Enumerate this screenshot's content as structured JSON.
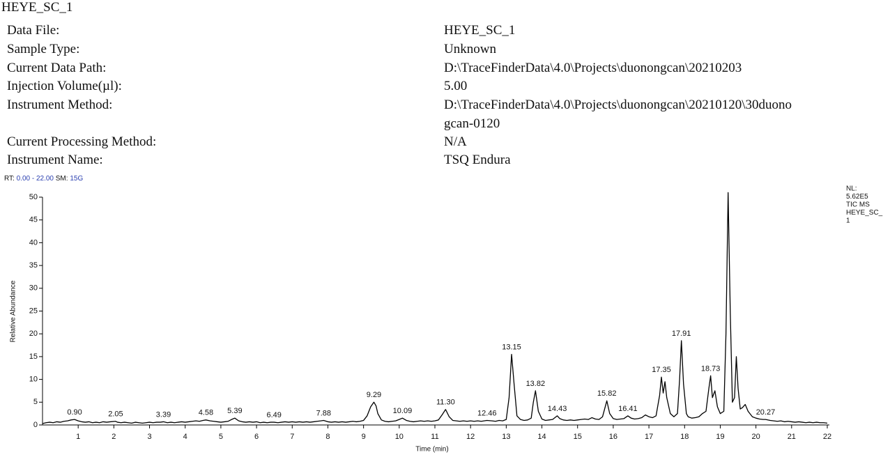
{
  "header": {
    "title": "HEYE_SC_1",
    "fields": [
      {
        "label": "Data File:",
        "value": "HEYE_SC_1"
      },
      {
        "label": "Sample Type:",
        "value": "Unknown"
      },
      {
        "label": "Current Data Path:",
        "value": "D:\\TraceFinderData\\4.0\\Projects\\duonongcan\\20210203"
      },
      {
        "label": "Injection Volume(µl):",
        "value": "5.00"
      },
      {
        "label": "Instrument Method:",
        "value": [
          "D:\\TraceFinderData\\4.0\\Projects\\duonongcan\\20210120\\30duono",
          "gcan-0120"
        ]
      },
      {
        "label": "Current Processing Method:",
        "value": "N/A"
      },
      {
        "label": "Instrument Name:",
        "value": "TSQ Endura"
      }
    ]
  },
  "chart_data": {
    "type": "line",
    "rt_label": "RT:",
    "rt_range": "0.00 - 22.00",
    "sm_label": "SM:",
    "sm_value": "15G",
    "nl_lines": [
      "NL:",
      "5.62E5",
      "TIC  MS",
      "HEYE_SC_",
      "1"
    ],
    "xlabel": "Time (min)",
    "ylabel": "Relative Abundance",
    "xlim": [
      0,
      22
    ],
    "xticks": [
      1,
      2,
      3,
      4,
      5,
      6,
      7,
      8,
      9,
      10,
      11,
      12,
      13,
      14,
      15,
      16,
      17,
      18,
      19,
      20,
      21,
      22
    ],
    "ylim": [
      0,
      50
    ],
    "yticks": [
      0,
      5,
      10,
      15,
      20,
      25,
      30,
      35,
      40,
      45,
      50
    ],
    "color": "#000000",
    "x": [
      0.0,
      0.1,
      0.2,
      0.3,
      0.4,
      0.5,
      0.6,
      0.7,
      0.8,
      0.9,
      1.0,
      1.1,
      1.2,
      1.3,
      1.4,
      1.5,
      1.6,
      1.7,
      1.8,
      1.9,
      2.05,
      2.1,
      2.2,
      2.3,
      2.4,
      2.5,
      2.6,
      2.7,
      2.8,
      2.9,
      3.0,
      3.1,
      3.2,
      3.3,
      3.39,
      3.5,
      3.6,
      3.7,
      3.8,
      3.9,
      4.0,
      4.1,
      4.2,
      4.3,
      4.4,
      4.5,
      4.58,
      4.7,
      4.8,
      4.9,
      5.0,
      5.1,
      5.2,
      5.3,
      5.39,
      5.5,
      5.6,
      5.7,
      5.8,
      5.9,
      6.0,
      6.1,
      6.2,
      6.3,
      6.4,
      6.49,
      6.6,
      6.7,
      6.8,
      6.9,
      7.0,
      7.1,
      7.2,
      7.3,
      7.4,
      7.5,
      7.6,
      7.7,
      7.8,
      7.88,
      8.0,
      8.1,
      8.2,
      8.3,
      8.4,
      8.5,
      8.6,
      8.7,
      8.8,
      8.9,
      9.0,
      9.1,
      9.2,
      9.29,
      9.35,
      9.4,
      9.5,
      9.6,
      9.7,
      9.8,
      9.9,
      10.0,
      10.09,
      10.2,
      10.3,
      10.4,
      10.5,
      10.6,
      10.7,
      10.8,
      10.9,
      11.0,
      11.1,
      11.2,
      11.3,
      11.4,
      11.5,
      11.6,
      11.7,
      11.8,
      11.9,
      12.0,
      12.1,
      12.2,
      12.3,
      12.46,
      12.6,
      12.7,
      12.8,
      12.9,
      13.0,
      13.08,
      13.15,
      13.22,
      13.3,
      13.4,
      13.5,
      13.6,
      13.7,
      13.76,
      13.82,
      13.9,
      14.0,
      14.1,
      14.2,
      14.3,
      14.43,
      14.5,
      14.6,
      14.7,
      14.8,
      14.9,
      15.0,
      15.1,
      15.2,
      15.3,
      15.4,
      15.5,
      15.6,
      15.7,
      15.82,
      15.9,
      16.0,
      16.1,
      16.2,
      16.3,
      16.41,
      16.5,
      16.6,
      16.7,
      16.8,
      16.9,
      17.0,
      17.1,
      17.2,
      17.3,
      17.35,
      17.4,
      17.45,
      17.5,
      17.6,
      17.7,
      17.8,
      17.86,
      17.91,
      17.97,
      18.05,
      18.1,
      18.2,
      18.3,
      18.4,
      18.5,
      18.6,
      18.68,
      18.73,
      18.78,
      18.85,
      18.92,
      19.0,
      19.1,
      19.16,
      19.22,
      19.28,
      19.34,
      19.4,
      19.45,
      19.5,
      19.56,
      19.62,
      19.7,
      19.78,
      19.9,
      20.0,
      20.1,
      20.2,
      20.27,
      20.4,
      20.5,
      20.6,
      20.7,
      20.8,
      20.9,
      21.0,
      21.1,
      21.2,
      21.3,
      21.4,
      21.5,
      21.6,
      21.7,
      21.8,
      21.9,
      22.0
    ],
    "values": [
      0.3,
      0.5,
      0.6,
      0.5,
      0.7,
      0.6,
      0.8,
      0.9,
      1.1,
      1.2,
      0.9,
      0.7,
      0.6,
      0.7,
      0.5,
      0.6,
      0.5,
      0.7,
      0.6,
      0.7,
      0.8,
      0.6,
      0.5,
      0.6,
      0.5,
      0.4,
      0.6,
      0.5,
      0.4,
      0.5,
      0.6,
      0.5,
      0.6,
      0.6,
      0.7,
      0.5,
      0.6,
      0.5,
      0.6,
      0.7,
      0.6,
      0.7,
      0.8,
      0.9,
      0.8,
      1.0,
      1.1,
      0.9,
      0.8,
      0.7,
      0.6,
      0.7,
      0.8,
      1.2,
      1.5,
      0.9,
      0.7,
      0.6,
      0.7,
      0.6,
      0.7,
      0.5,
      0.6,
      0.5,
      0.6,
      0.6,
      0.5,
      0.6,
      0.7,
      0.6,
      0.7,
      0.6,
      0.7,
      0.6,
      0.7,
      0.6,
      0.7,
      0.8,
      0.9,
      1.0,
      0.7,
      0.6,
      0.7,
      0.6,
      0.7,
      0.6,
      0.7,
      0.8,
      0.7,
      0.8,
      1.0,
      2.0,
      4.0,
      5.0,
      4.2,
      2.5,
      1.1,
      0.8,
      0.7,
      0.8,
      0.9,
      1.2,
      1.5,
      1.0,
      0.8,
      0.7,
      0.8,
      0.9,
      0.8,
      0.9,
      0.8,
      0.9,
      1.1,
      2.2,
      3.4,
      1.8,
      1.0,
      0.9,
      0.8,
      0.9,
      0.8,
      0.9,
      0.8,
      0.9,
      0.8,
      1.0,
      0.9,
      0.8,
      1.0,
      0.9,
      1.2,
      6.0,
      15.5,
      9.0,
      2.0,
      1.2,
      1.0,
      1.1,
      1.5,
      5.0,
      7.5,
      3.0,
      1.3,
      1.0,
      1.1,
      1.2,
      2.0,
      1.4,
      1.1,
      1.0,
      1.1,
      1.0,
      1.1,
      1.2,
      1.3,
      1.2,
      1.6,
      1.3,
      1.2,
      1.8,
      5.3,
      2.5,
      1.4,
      1.2,
      1.3,
      1.4,
      2.0,
      1.5,
      1.3,
      1.4,
      1.6,
      2.2,
      1.8,
      1.6,
      2.0,
      6.5,
      10.5,
      7.0,
      9.5,
      6.0,
      2.5,
      1.8,
      2.5,
      10.0,
      18.5,
      9.0,
      2.5,
      1.8,
      1.5,
      1.6,
      1.8,
      2.5,
      3.0,
      8.0,
      10.8,
      6.0,
      7.5,
      4.0,
      2.5,
      3.0,
      20.0,
      51,
      25,
      5.0,
      6.0,
      15.0,
      8.0,
      3.5,
      3.8,
      4.5,
      3.0,
      1.8,
      1.5,
      1.3,
      1.2,
      1.2,
      1.0,
      0.9,
      0.8,
      0.9,
      0.7,
      0.8,
      0.7,
      0.6,
      0.7,
      0.6,
      0.5,
      0.6,
      0.5,
      0.6,
      0.5,
      0.5,
      0.4
    ],
    "peak_labels": [
      {
        "x": 0.9,
        "y": 1.2,
        "label": "0.90"
      },
      {
        "x": 2.05,
        "y": 0.8,
        "label": "2.05"
      },
      {
        "x": 3.39,
        "y": 0.7,
        "label": "3.39"
      },
      {
        "x": 4.58,
        "y": 1.1,
        "label": "4.58"
      },
      {
        "x": 5.39,
        "y": 1.5,
        "label": "5.39"
      },
      {
        "x": 6.49,
        "y": 0.6,
        "label": "6.49"
      },
      {
        "x": 7.88,
        "y": 1.0,
        "label": "7.88"
      },
      {
        "x": 9.29,
        "y": 5.0,
        "label": "9.29"
      },
      {
        "x": 10.09,
        "y": 1.5,
        "label": "10.09"
      },
      {
        "x": 11.3,
        "y": 3.4,
        "label": "11.30"
      },
      {
        "x": 12.46,
        "y": 1.0,
        "label": "12.46"
      },
      {
        "x": 13.15,
        "y": 15.5,
        "label": "13.15"
      },
      {
        "x": 13.82,
        "y": 7.5,
        "label": "13.82"
      },
      {
        "x": 14.43,
        "y": 2.0,
        "label": "14.43"
      },
      {
        "x": 15.82,
        "y": 5.3,
        "label": "15.82"
      },
      {
        "x": 16.41,
        "y": 2.0,
        "label": "16.41"
      },
      {
        "x": 17.35,
        "y": 10.5,
        "label": "17.35"
      },
      {
        "x": 17.91,
        "y": 18.5,
        "label": "17.91"
      },
      {
        "x": 18.73,
        "y": 10.8,
        "label": "18.73"
      },
      {
        "x": 20.27,
        "y": 1.2,
        "label": "20.27"
      }
    ]
  }
}
